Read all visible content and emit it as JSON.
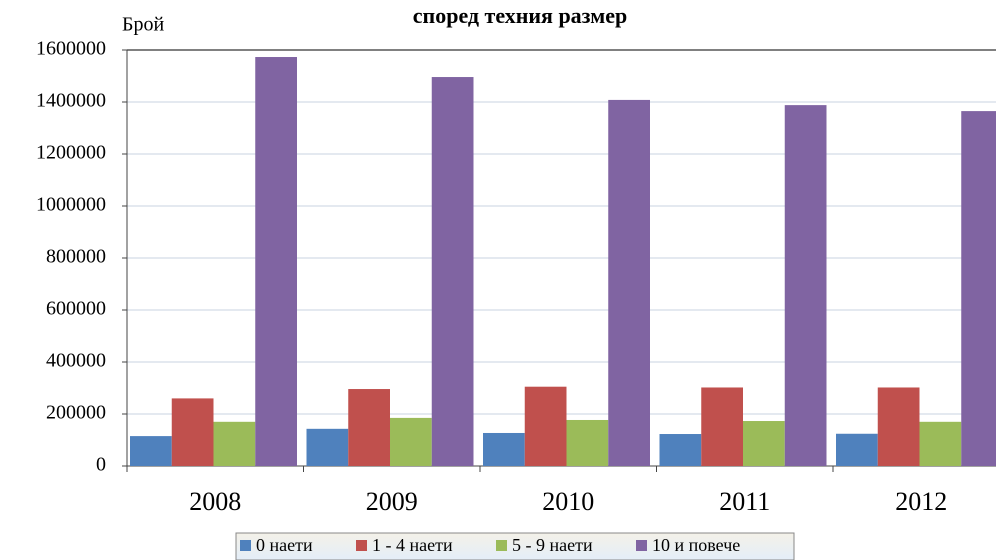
{
  "chart_data": {
    "type": "bar",
    "title": "според техния размер",
    "y_label": "Брой",
    "categories": [
      "2008",
      "2009",
      "2010",
      "2011",
      "2012"
    ],
    "series": [
      {
        "name": "0 наети",
        "color": "#4f81bd",
        "values": [
          115000,
          143000,
          127000,
          123000,
          124000
        ]
      },
      {
        "name": "1 - 4 наети",
        "color": "#c0504d",
        "values": [
          260000,
          296000,
          305000,
          302000,
          302000
        ]
      },
      {
        "name": "5 - 9 наети",
        "color": "#9bbb59",
        "values": [
          170000,
          185000,
          177000,
          173000,
          170000
        ]
      },
      {
        "name": "10 и повече",
        "color": "#8064a2",
        "values": [
          1573000,
          1496000,
          1408000,
          1388000,
          1365000
        ]
      }
    ],
    "ylim": [
      0,
      1600000
    ],
    "yticks": [
      0,
      200000,
      400000,
      600000,
      800000,
      1000000,
      1200000,
      1400000,
      1600000
    ],
    "grid": true
  }
}
